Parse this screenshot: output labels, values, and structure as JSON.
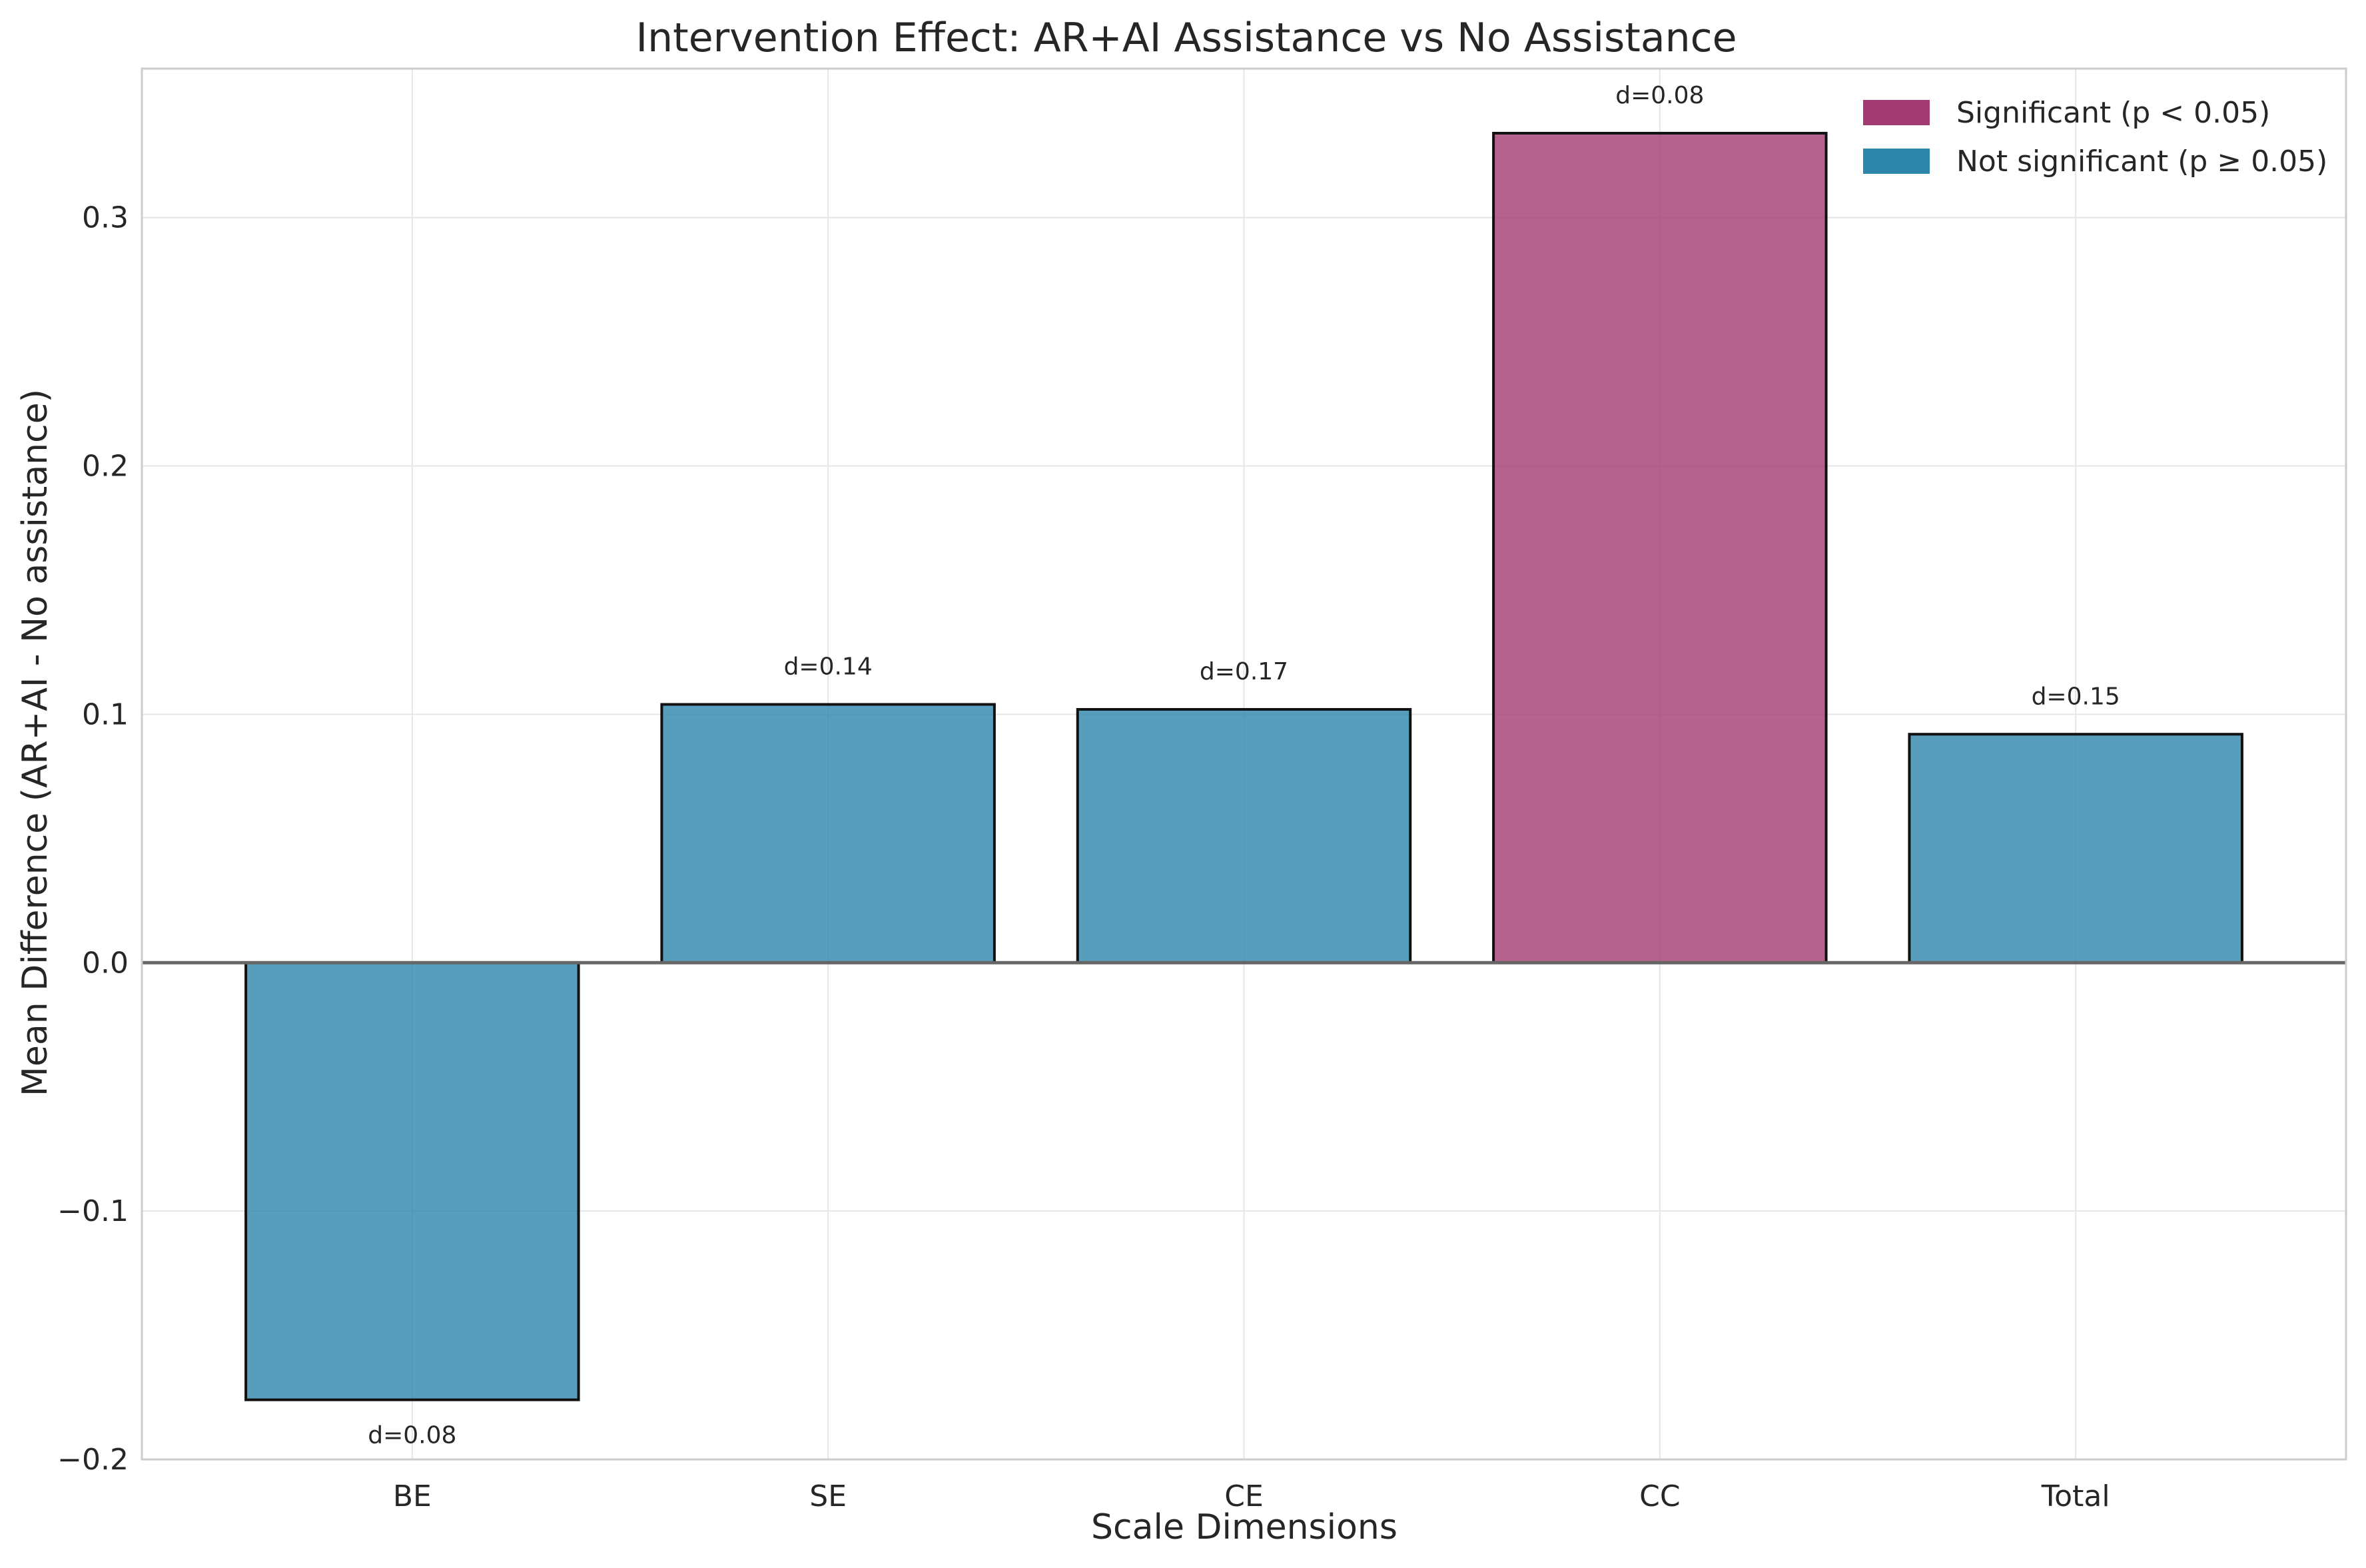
{
  "chart_data": {
    "type": "bar",
    "title": "Intervention Effect: AR+AI Assistance vs No Assistance",
    "xlabel": "Scale Dimensions",
    "ylabel": "Mean Difference (AR+AI - No assistance)",
    "categories": [
      "BE",
      "SE",
      "CE",
      "CC",
      "Total"
    ],
    "values": [
      -0.176,
      0.104,
      0.102,
      0.334,
      0.092
    ],
    "effect_labels": [
      "d=0.08",
      "d=0.14",
      "d=0.17",
      "d=0.08",
      "d=0.15"
    ],
    "significant": [
      false,
      false,
      false,
      true,
      false
    ],
    "ylim": [
      -0.2,
      0.36
    ],
    "yticks": [
      -0.2,
      -0.1,
      0.0,
      0.1,
      0.2,
      0.3
    ],
    "ytick_labels": [
      "−0.2",
      "−0.1",
      "0.0",
      "0.1",
      "0.2",
      "0.3"
    ],
    "grid": true,
    "legend_position": "top-right",
    "legend": [
      {
        "label": "Significant (p < 0.05)",
        "color": "#a23b72"
      },
      {
        "label": "Not significant (p ≥ 0.05)",
        "color": "#2e86ab"
      }
    ],
    "colors": {
      "significant": "#a23b72",
      "not_significant": "#2e86ab"
    }
  }
}
